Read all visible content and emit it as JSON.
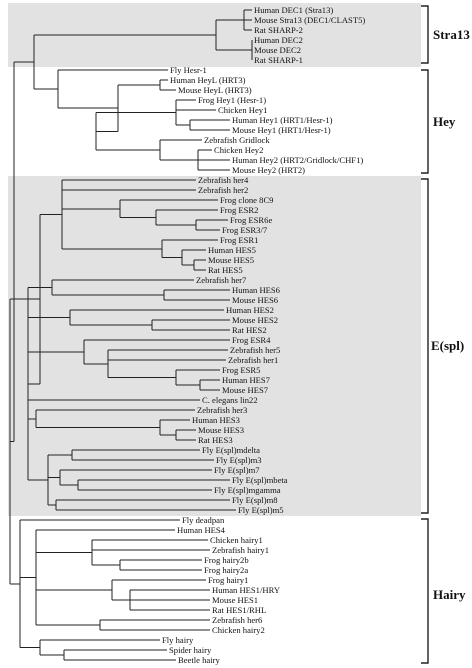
{
  "groups": [
    {
      "key": "stra13",
      "label": "Stra13",
      "shade": true
    },
    {
      "key": "hey",
      "label": "Hey",
      "shade": false
    },
    {
      "key": "espl",
      "label": "E(spl)",
      "shade": true
    },
    {
      "key": "hairy",
      "label": "Hairy",
      "shade": false
    }
  ],
  "shade_color": "#e2e2e2",
  "leaves": [
    "Human DEC1 (Stra13)",
    "Mouse Stra13 (DEC1/CLAST5)",
    "Rat SHARP-2",
    "Human DEC2",
    "Mouse DEC2",
    "Rat SHARP-1",
    "Fly Hesr-1",
    "Human HeyL (HRT3)",
    "Mouse HeyL (HRT3)",
    "Frog Hey1 (Hesr-1)",
    "Chicken Hey1",
    "Human Hey1 (HRT1/Hesr-1)",
    "Mouse Hey1 (HRT1/Hesr-1)",
    "Zebrafish Gridlock",
    "Chicken Hey2",
    "Human Hey2 (HRT2/Gridlock/CHF1)",
    "Mouse Hey2 (HRT2)",
    "Zebrafish her4",
    "Zebrafish her2",
    "Frog clone 8C9",
    "Frog ESR2",
    "Frog ESR6e",
    "Frog ESR3/7",
    "Frog ESR1",
    "Human HES5",
    "Mouse HES5",
    "Rat HES5",
    "Zebrafish her7",
    "Human HES6",
    "Mouse HES6",
    "Human HES2",
    "Mouse HES2",
    "Rat HES2",
    "Frog ESR4",
    "Zebrafish her5",
    "Zebrafish her1",
    "Frog ESR5",
    "Human HES7",
    "Mouse HES7",
    "C. elegans lin22",
    "Zebrafish her3",
    "Human HES3",
    "Mouse HES3",
    "Rat HES3",
    "Fly E(spl)mdelta",
    "Fly E(spl)m3",
    "Fly E(spl)m7",
    "Fly E(spl)mbeta",
    "Fly E(spl)mgamma",
    "Fly E(spl)m8",
    "Fly E(spl)m5",
    "Fly deadpan",
    "Human HES4",
    "Chicken hairy1",
    "Zebrafish hairy1",
    "Frog hairy2b",
    "Frog hairy2a",
    "Frog hairy1",
    "Human HES1/HRY",
    "Mouse HES1",
    "Rat HES1/RHL",
    "Zebrafish her6",
    "Chicken hairy2",
    "Fly hairy",
    "Spider hairy",
    "Beetle hairy"
  ]
}
